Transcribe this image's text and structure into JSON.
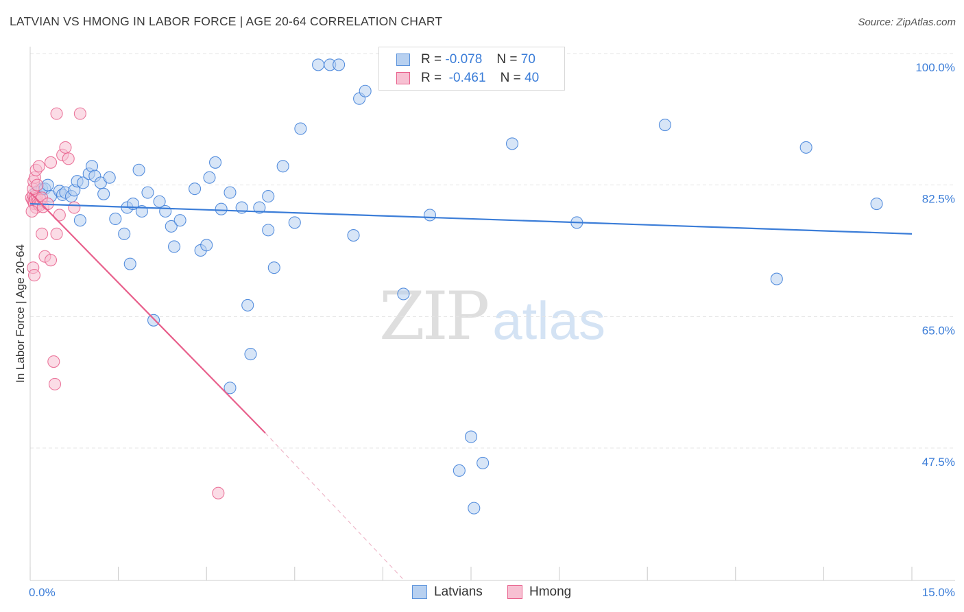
{
  "title": "LATVIAN VS HMONG IN LABOR FORCE | AGE 20-64 CORRELATION CHART",
  "source": "Source: ZipAtlas.com",
  "watermark": {
    "zip": "ZIP",
    "atlas": "atlas"
  },
  "legend": {
    "latvians": {
      "r_label": "R =",
      "r_value": "-0.078",
      "n_label": "N =",
      "n_value": "70"
    },
    "hmong": {
      "r_label": "R =",
      "r_value": "-0.461",
      "n_label": "N =",
      "n_value": "40"
    }
  },
  "bottom_legend": {
    "latvians": "Latvians",
    "hmong": "Hmong"
  },
  "chart_data": {
    "type": "scatter",
    "title": "LATVIAN VS HMONG IN LABOR FORCE | AGE 20-64 CORRELATION CHART",
    "xlabel": "",
    "ylabel": "In Labor Force | Age 20-64",
    "xlim": [
      0,
      15
    ],
    "ylim": [
      29,
      102
    ],
    "x_tick_labels": [
      {
        "value": 0,
        "label": "0.0%"
      },
      {
        "value": 15,
        "label": "15.0%"
      }
    ],
    "y_tick_labels": [
      {
        "value": 100,
        "label": "100.0%"
      },
      {
        "value": 82.5,
        "label": "82.5%"
      },
      {
        "value": 65,
        "label": "65.0%"
      },
      {
        "value": 47.5,
        "label": "47.5%"
      }
    ],
    "grid": true,
    "colors": {
      "latvians": "#3b7dd8",
      "hmong": "#e8608c",
      "latvians_fill": "#b7d0f0",
      "hmong_fill": "#f7c0d2"
    },
    "series": [
      {
        "name": "Latvians",
        "r": -0.078,
        "n": 70,
        "trend": {
          "x0": 0.0,
          "y0": 80.0,
          "x1": 15.0,
          "y1": 76.0
        },
        "points": [
          [
            0.1,
            81.5
          ],
          [
            0.15,
            81.8
          ],
          [
            0.2,
            82.0
          ],
          [
            0.25,
            82.0
          ],
          [
            0.3,
            82.5
          ],
          [
            0.35,
            81.0
          ],
          [
            0.5,
            81.7
          ],
          [
            0.55,
            81.2
          ],
          [
            0.6,
            81.5
          ],
          [
            0.7,
            81.0
          ],
          [
            0.75,
            81.8
          ],
          [
            0.8,
            83.0
          ],
          [
            0.9,
            82.8
          ],
          [
            0.85,
            77.8
          ],
          [
            1.0,
            84.0
          ],
          [
            1.05,
            85.0
          ],
          [
            1.1,
            83.7
          ],
          [
            1.2,
            82.8
          ],
          [
            1.25,
            81.3
          ],
          [
            1.35,
            83.5
          ],
          [
            1.45,
            78.0
          ],
          [
            1.6,
            76.0
          ],
          [
            1.65,
            79.5
          ],
          [
            1.75,
            80.0
          ],
          [
            1.9,
            79.0
          ],
          [
            1.85,
            84.5
          ],
          [
            2.0,
            81.5
          ],
          [
            2.2,
            80.3
          ],
          [
            2.3,
            79.0
          ],
          [
            2.4,
            77.0
          ],
          [
            2.45,
            74.3
          ],
          [
            2.55,
            77.8
          ],
          [
            2.8,
            82.0
          ],
          [
            2.9,
            73.8
          ],
          [
            3.0,
            74.5
          ],
          [
            3.05,
            83.5
          ],
          [
            3.15,
            85.5
          ],
          [
            3.25,
            79.3
          ],
          [
            3.4,
            81.5
          ],
          [
            3.6,
            79.5
          ],
          [
            3.7,
            66.5
          ],
          [
            3.75,
            60.0
          ],
          [
            3.9,
            79.5
          ],
          [
            4.05,
            81.0
          ],
          [
            4.05,
            76.5
          ],
          [
            4.15,
            71.5
          ],
          [
            4.3,
            85.0
          ],
          [
            4.5,
            77.5
          ],
          [
            4.6,
            90.0
          ],
          [
            4.9,
            98.5
          ],
          [
            5.1,
            98.5
          ],
          [
            5.25,
            98.5
          ],
          [
            5.5,
            75.8
          ],
          [
            5.6,
            94.0
          ],
          [
            5.7,
            95.0
          ],
          [
            6.35,
            68.0
          ],
          [
            6.8,
            78.5
          ],
          [
            7.3,
            44.5
          ],
          [
            7.5,
            49.0
          ],
          [
            7.55,
            39.5
          ],
          [
            7.7,
            45.5
          ],
          [
            8.2,
            88.0
          ],
          [
            9.3,
            77.5
          ],
          [
            10.8,
            90.5
          ],
          [
            12.7,
            70.0
          ],
          [
            13.2,
            87.5
          ],
          [
            14.4,
            80.0
          ],
          [
            2.1,
            64.5
          ],
          [
            1.7,
            72.0
          ],
          [
            3.4,
            55.5
          ]
        ]
      },
      {
        "name": "Hmong",
        "r": -0.461,
        "n": 40,
        "trend": {
          "x0": 0.0,
          "y0": 81.5,
          "x1": 4.0,
          "y1": 49.5,
          "dashed_to": {
            "x": 6.35,
            "y": 30.0
          }
        },
        "points": [
          [
            0.02,
            80.8
          ],
          [
            0.04,
            80.5
          ],
          [
            0.05,
            81.2
          ],
          [
            0.06,
            80.2
          ],
          [
            0.07,
            80.0
          ],
          [
            0.08,
            81.0
          ],
          [
            0.09,
            80.6
          ],
          [
            0.1,
            79.5
          ],
          [
            0.12,
            80.8
          ],
          [
            0.13,
            80.3
          ],
          [
            0.14,
            80.0
          ],
          [
            0.16,
            79.8
          ],
          [
            0.18,
            80.5
          ],
          [
            0.2,
            80.8
          ],
          [
            0.22,
            79.6
          ],
          [
            0.03,
            79.0
          ],
          [
            0.05,
            82.0
          ],
          [
            0.06,
            83.0
          ],
          [
            0.08,
            83.5
          ],
          [
            0.1,
            84.5
          ],
          [
            0.12,
            82.5
          ],
          [
            0.15,
            85.0
          ],
          [
            0.2,
            76.0
          ],
          [
            0.25,
            73.0
          ],
          [
            0.3,
            80.0
          ],
          [
            0.35,
            85.5
          ],
          [
            0.45,
            92.0
          ],
          [
            0.5,
            78.5
          ],
          [
            0.55,
            86.5
          ],
          [
            0.6,
            87.5
          ],
          [
            0.75,
            79.5
          ],
          [
            0.85,
            92.0
          ],
          [
            0.45,
            76.0
          ],
          [
            0.35,
            72.5
          ],
          [
            0.05,
            71.5
          ],
          [
            0.07,
            70.5
          ],
          [
            0.4,
            59.0
          ],
          [
            0.42,
            56.0
          ],
          [
            3.2,
            41.5
          ],
          [
            0.65,
            86.0
          ]
        ]
      }
    ]
  }
}
